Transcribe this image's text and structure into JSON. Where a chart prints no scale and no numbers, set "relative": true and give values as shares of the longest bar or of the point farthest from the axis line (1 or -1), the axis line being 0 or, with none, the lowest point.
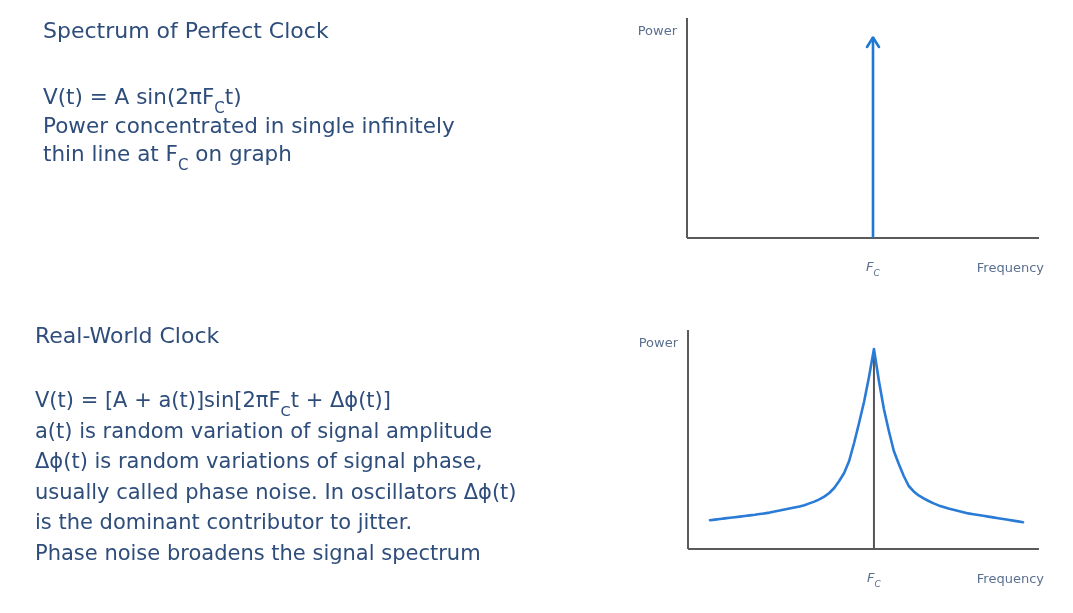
{
  "chart_data": [
    {
      "type": "other",
      "title": "Spectrum of Perfect Clock",
      "annotations": [
        "V(t) = A sin(2πF$_{C}$t)",
        "Power concentrated in single infinitely",
        "thin line at F$_{C}$ on graph"
      ]
    },
    {
      "type": "bar",
      "xlabel": "Frequency",
      "ylabel": "Power",
      "categories": [
        "F$_{C}$"
      ],
      "values": [
        1
      ],
      "color": "#1f78d4",
      "relative": true
    },
    {
      "type": "other",
      "title": "Real-World Clock",
      "annotations": [
        "V(t) = [A + a(t)]sin[2πF$_{C}$t + Δϕ(t)]",
        "a(t) is random variation of signal amplitude",
        "Δϕ(t) is random variations of signal phase,",
        "usually called phase noise. In oscillators Δϕ(t)",
        "is the dominant contributor to jitter.",
        "Phase noise broadens the signal spectrum"
      ]
    },
    {
      "type": "line",
      "xlabel": "Frequency",
      "ylabel": "Power",
      "annotations": [
        "F$_{C}$"
      ],
      "categories": [
        null,
        null,
        null,
        null,
        null,
        null,
        null,
        null,
        null,
        null,
        null,
        null,
        null,
        null,
        null,
        null,
        null,
        null,
        null,
        null,
        null,
        null,
        null,
        null,
        null,
        null,
        null,
        null,
        null,
        null,
        null,
        null,
        null,
        null,
        null,
        null,
        null,
        null,
        null,
        null,
        null,
        null,
        null,
        null,
        null,
        null,
        null,
        null,
        null,
        null,
        null,
        null,
        null,
        null,
        null,
        null,
        null,
        null,
        null,
        null,
        null,
        null,
        null,
        null
      ],
      "values": [
        0.144,
        0.147,
        0.15,
        0.153,
        0.156,
        0.159,
        0.162,
        0.165,
        0.168,
        0.171,
        0.175,
        0.178,
        0.182,
        0.187,
        0.192,
        0.198,
        0.203,
        0.208,
        0.213,
        0.219,
        0.228,
        0.237,
        0.248,
        0.262,
        0.28,
        0.305,
        0.34,
        0.38,
        0.44,
        0.53,
        0.63,
        0.735,
        0.86,
        1,
        0.84,
        0.7,
        0.59,
        0.49,
        0.425,
        0.365,
        0.315,
        0.288,
        0.268,
        0.253,
        0.24,
        0.228,
        0.218,
        0.21,
        0.202,
        0.196,
        0.19,
        0.184,
        0.178,
        0.174,
        0.17,
        0.166,
        0.162,
        0.158,
        0.154,
        0.15,
        0.146,
        0.142,
        0.138,
        0.134
      ],
      "color": "#2a7bd6",
      "relative": true
    }
  ]
}
